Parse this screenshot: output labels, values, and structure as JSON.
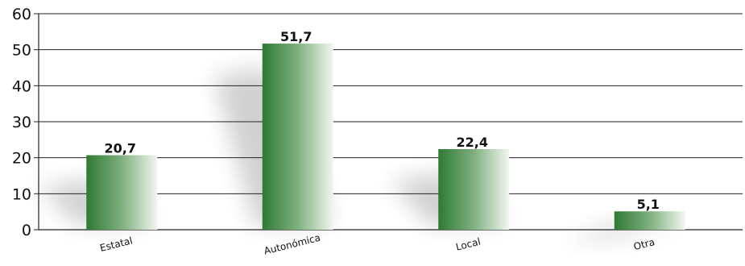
{
  "chart_data": {
    "type": "bar",
    "categories": [
      "Estatal",
      "Autonómica",
      "Local",
      "Otra"
    ],
    "values": [
      20.7,
      51.7,
      22.4,
      5.1
    ],
    "value_labels": [
      "20,7",
      "51,7",
      "22,4",
      "5,1"
    ],
    "y_ticks": [
      0,
      10,
      20,
      30,
      40,
      50,
      60
    ],
    "ylim": [
      0,
      60
    ],
    "grid": true,
    "bar_color": "#2e7d32"
  }
}
